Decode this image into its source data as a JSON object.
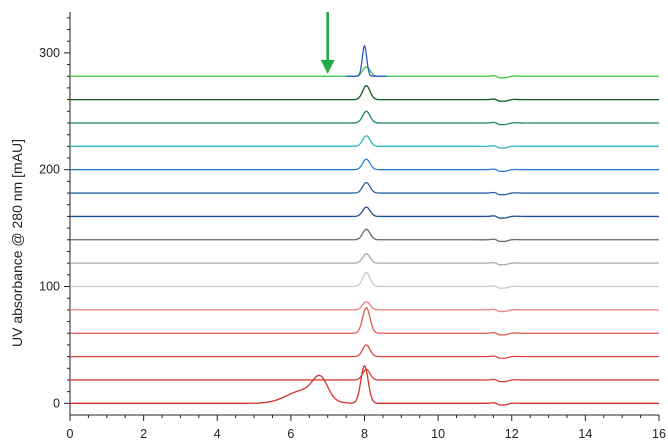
{
  "chart_data": {
    "type": "line",
    "title": "",
    "xlabel": "",
    "ylabel": "UV absorbance @ 280 nm [mAU]",
    "xlim": [
      0,
      16
    ],
    "ylim": [
      -10,
      335
    ],
    "x_ticks": [
      0,
      2,
      4,
      6,
      8,
      10,
      12,
      14,
      16
    ],
    "y_ticks": [
      0,
      100,
      200,
      300
    ],
    "x_tick_labels": [
      "0",
      "2",
      "4",
      "6",
      "8",
      "10",
      "12",
      "14",
      "16"
    ],
    "y_tick_labels": [
      "0",
      "100",
      "200",
      "300"
    ],
    "grid": false,
    "legend": "none",
    "annotation": {
      "type": "arrow",
      "x": 7.0,
      "y_from": 335,
      "y_to": 282,
      "color": "#22aa44"
    },
    "series": [
      {
        "baseline": 0,
        "color": "#d0312d",
        "peak_x": 8.0,
        "peak_height": 32,
        "shoulders": [
          {
            "x": 6.35,
            "height": 11,
            "width": 0.45
          },
          {
            "x": 6.8,
            "height": 17,
            "width": 0.2
          }
        ]
      },
      {
        "baseline": 20,
        "color": "#d8403a",
        "peak_x": 8.05,
        "peak_height": 9,
        "shoulders": []
      },
      {
        "baseline": 40,
        "color": "#dd4a44",
        "peak_x": 8.05,
        "peak_height": 10,
        "shoulders": []
      },
      {
        "baseline": 60,
        "color": "#e05a55",
        "peak_x": 8.05,
        "peak_height": 22,
        "shoulders": []
      },
      {
        "baseline": 80,
        "color": "#e87f7c",
        "peak_x": 8.05,
        "peak_height": 7,
        "shoulders": []
      },
      {
        "baseline": 100,
        "color": "#c9c9c9",
        "peak_x": 8.05,
        "peak_height": 12,
        "shoulders": []
      },
      {
        "baseline": 120,
        "color": "#a9a9a9",
        "peak_x": 8.05,
        "peak_height": 8,
        "shoulders": []
      },
      {
        "baseline": 140,
        "color": "#6a6a6a",
        "peak_x": 8.05,
        "peak_height": 9,
        "shoulders": []
      },
      {
        "baseline": 160,
        "color": "#1f4e8c",
        "peak_x": 8.05,
        "peak_height": 8,
        "shoulders": []
      },
      {
        "baseline": 180,
        "color": "#2a62a6",
        "peak_x": 8.05,
        "peak_height": 9,
        "shoulders": []
      },
      {
        "baseline": 200,
        "color": "#2f7fd6",
        "peak_x": 8.05,
        "peak_height": 9,
        "shoulders": []
      },
      {
        "baseline": 220,
        "color": "#2fb8c4",
        "peak_x": 8.05,
        "peak_height": 9,
        "shoulders": []
      },
      {
        "baseline": 240,
        "color": "#1e8a5a",
        "peak_x": 8.05,
        "peak_height": 10,
        "shoulders": []
      },
      {
        "baseline": 260,
        "color": "#0f5a22",
        "peak_x": 8.05,
        "peak_height": 12,
        "shoulders": []
      },
      {
        "baseline": 280,
        "color": "#3cc43c",
        "peak_x": 8.05,
        "peak_height": 8,
        "shoulders": [],
        "overlay_peak_color": "#2f55c8",
        "overlay_peak_height": 26
      }
    ]
  }
}
